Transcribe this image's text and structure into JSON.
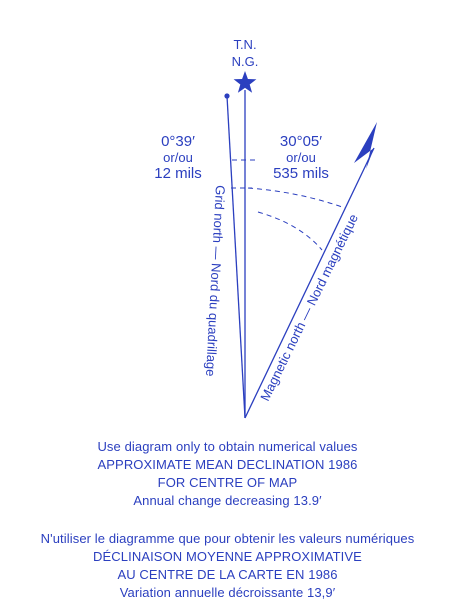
{
  "diagram": {
    "true_north_label": "T.N.",
    "magnetic_grid_label": "N.G.",
    "grid_angle": {
      "degrees": "0°39′",
      "or": "or/ou",
      "mils": "12 mils"
    },
    "magnetic_angle": {
      "degrees": "30°05′",
      "or": "or/ou",
      "mils": "535 mils"
    },
    "grid_north_label": "Grid north — Nord du quadrillage",
    "magnetic_north_label": "Magnetic north — Nord magnétique",
    "accent_color": "#2b3fbf"
  },
  "caption_en": {
    "line1": "Use diagram only to obtain numerical values",
    "line2": "APPROXIMATE MEAN DECLINATION 1986",
    "line3": "FOR CENTRE OF MAP",
    "line4": "Annual change decreasing 13.9′"
  },
  "caption_fr": {
    "line1": "N'utiliser le diagramme que pour obtenir les valeurs numériques",
    "line2": "DÉCLINAISON MOYENNE APPROXIMATIVE",
    "line3": "AU CENTRE DE LA CARTE EN 1986",
    "line4": "Variation annuelle décroissante 13,9′"
  }
}
